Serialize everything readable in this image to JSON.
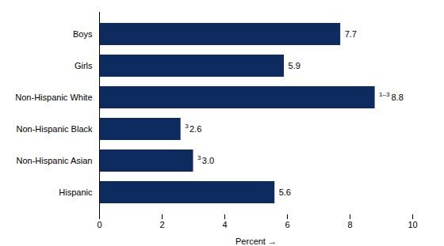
{
  "chart_data": {
    "type": "bar",
    "orientation": "horizontal",
    "categories": [
      "Hispanic",
      "Non-Hispanic Asian",
      "Non-Hispanic Black",
      "Non-Hispanic White",
      "Girls",
      "Boys"
    ],
    "values": [
      5.6,
      3.0,
      2.6,
      8.8,
      5.9,
      7.7
    ],
    "value_labels": [
      "5.6",
      "3.0",
      "2.6",
      "8.8",
      "5.9",
      "7.7"
    ],
    "superscripts": [
      null,
      "3",
      "3",
      "1–3",
      null,
      null
    ],
    "data_labels": true,
    "color": "#0d2b5e",
    "xlabel": "Percent",
    "xlim": [
      0,
      10
    ],
    "xticks": [
      0,
      2,
      4,
      6,
      8,
      10
    ],
    "grid": false
  }
}
